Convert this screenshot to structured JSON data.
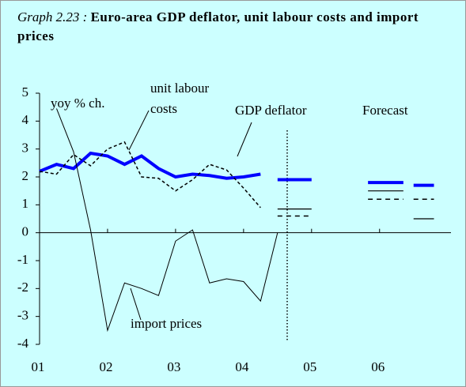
{
  "chart_data": {
    "type": "line",
    "label": "Graph 2.23 :",
    "title": "Euro-area GDP deflator, unit labour costs and import prices",
    "x": [
      2001,
      2001.25,
      2001.5,
      2001.75,
      2002,
      2002.25,
      2002.5,
      2002.75,
      2003,
      2003.25,
      2003.5,
      2003.75,
      2004,
      2004.25,
      2004.5
    ],
    "series": [
      {
        "name": "GDP deflator",
        "color": "#0000ff",
        "style": "thick",
        "values": [
          2.2,
          2.45,
          2.3,
          2.85,
          2.75,
          2.45,
          2.75,
          2.3,
          2.0,
          2.1,
          2.05,
          1.95,
          2.0,
          2.1,
          null
        ],
        "forecast_values": [
          1.9,
          1.8,
          1.7
        ]
      },
      {
        "name": "unit labour costs",
        "color": "#000000",
        "style": "dashed",
        "values": [
          2.2,
          2.1,
          2.8,
          2.4,
          3.0,
          3.25,
          2.0,
          1.95,
          1.5,
          1.9,
          2.45,
          2.25,
          1.6,
          0.9,
          null
        ],
        "forecast_values": [
          0.6,
          1.2,
          1.2
        ]
      },
      {
        "name": "import prices",
        "color": "#000000",
        "style": "thin",
        "values": [
          null,
          4.45,
          2.9,
          0.1,
          -3.5,
          -1.8,
          -2.0,
          -2.25,
          -0.3,
          0.1,
          -1.8,
          -1.65,
          -1.75,
          -2.45,
          0.0
        ],
        "forecast_values": [
          0.85,
          1.5,
          0.5
        ]
      }
    ],
    "forecast_x": [
      [
        2004.5,
        2005.0
      ],
      [
        2005.83,
        2006.35
      ],
      [
        2006.5,
        2006.8
      ]
    ],
    "annotations": [
      "yoy % ch.",
      "unit labour costs",
      "GDP deflator",
      "Forecast",
      "import prices"
    ],
    "xlim": [
      2001,
      2007.05
    ],
    "ylim": [
      -4,
      5
    ],
    "yticks": [
      -4,
      -3,
      -2,
      -1,
      0,
      1,
      2,
      3,
      4,
      5
    ],
    "xticks": [
      {
        "value": 2001,
        "label": "01"
      },
      {
        "value": 2002,
        "label": "02"
      },
      {
        "value": 2003,
        "label": "03"
      },
      {
        "value": 2004,
        "label": "04"
      },
      {
        "value": 2005,
        "label": "05"
      },
      {
        "value": 2006,
        "label": "06"
      }
    ],
    "background": "#ccffff"
  }
}
